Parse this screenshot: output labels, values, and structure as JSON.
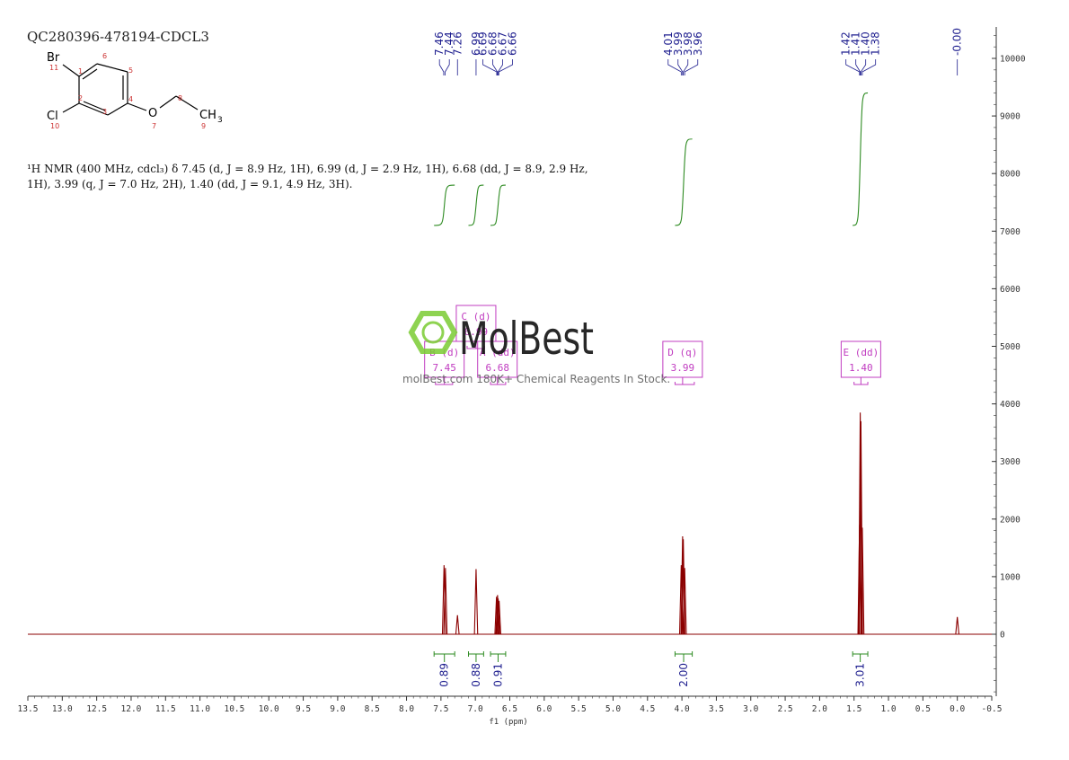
{
  "sample_id": "QC280396-478194-CDCL3",
  "structure": {
    "atoms": {
      "br": "Br",
      "br_num": "11",
      "cl": "Cl",
      "cl_num": "10",
      "o": "O",
      "o_num": "7",
      "ch3": "CH",
      "ch3_sub": "3",
      "ch3_num": "9",
      "c1": "1",
      "c2": "2",
      "c3": "3",
      "c4": "4",
      "c5": "5",
      "c6": "6",
      "c8": "8"
    }
  },
  "description": {
    "line1": "¹H NMR (400 MHz, cdcl₃) δ 7.45 (d, J = 8.9 Hz, 1H), 6.99 (d, J = 2.9 Hz, 1H), 6.68 (dd, J = 8.9, 2.9 Hz,",
    "line2": "1H), 3.99 (q, J = 7.0 Hz, 2H), 1.40 (dd, J = 9.1, 4.9 Hz, 3H)."
  },
  "watermark": {
    "brand": "MolBest",
    "tagline": "molBest.com 180K+ Chemical Reagents In Stock."
  },
  "chart_data": {
    "type": "line",
    "xlabel": "f1 (ppm)",
    "xlim": [
      13.5,
      -0.5
    ],
    "ylim": [
      -1000,
      10500
    ],
    "x_ticks": [
      "13.5",
      "13.0",
      "12.5",
      "12.0",
      "11.5",
      "11.0",
      "10.5",
      "10.0",
      "9.5",
      "9.0",
      "8.5",
      "8.0",
      "7.5",
      "7.0",
      "6.5",
      "6.0",
      "5.5",
      "5.0",
      "4.5",
      "4.0",
      "3.5",
      "3.0",
      "2.5",
      "2.0",
      "1.5",
      "1.0",
      "0.5",
      "0.0",
      "-0.5"
    ],
    "y_ticks": [
      "0",
      "1000",
      "2000",
      "3000",
      "4000",
      "5000",
      "6000",
      "7000",
      "8000",
      "9000",
      "10000"
    ],
    "spectrum_color": "#8b0000",
    "peaks": [
      {
        "ppm": 7.455,
        "height": 1200
      },
      {
        "ppm": 7.435,
        "height": 1150
      },
      {
        "ppm": 7.26,
        "height": 330
      },
      {
        "ppm": 6.99,
        "height": 1130
      },
      {
        "ppm": 6.693,
        "height": 650
      },
      {
        "ppm": 6.678,
        "height": 680
      },
      {
        "ppm": 6.669,
        "height": 620
      },
      {
        "ppm": 6.655,
        "height": 580
      },
      {
        "ppm": 4.01,
        "height": 1200
      },
      {
        "ppm": 3.99,
        "height": 1700
      },
      {
        "ppm": 3.98,
        "height": 1650
      },
      {
        "ppm": 3.96,
        "height": 1150
      },
      {
        "ppm": 1.42,
        "height": 1900
      },
      {
        "ppm": 1.41,
        "height": 3850
      },
      {
        "ppm": 1.4,
        "height": 3700
      },
      {
        "ppm": 1.38,
        "height": 1850
      },
      {
        "ppm": 0.0,
        "height": 300
      }
    ],
    "peak_labels": [
      {
        "text": "7.46",
        "ppm": 7.46
      },
      {
        "text": "7.44",
        "ppm": 7.44
      },
      {
        "text": "7.26",
        "ppm": 7.26
      },
      {
        "text": "6.99",
        "ppm": 6.99
      },
      {
        "text": "6.69",
        "ppm": 6.69
      },
      {
        "text": "6.68",
        "ppm": 6.68
      },
      {
        "text": "6.67",
        "ppm": 6.67
      },
      {
        "text": "6.66",
        "ppm": 6.66
      },
      {
        "text": "4.01",
        "ppm": 4.01
      },
      {
        "text": "3.99",
        "ppm": 3.99
      },
      {
        "text": "3.98",
        "ppm": 3.98
      },
      {
        "text": "3.96",
        "ppm": 3.96
      },
      {
        "text": "1.42",
        "ppm": 1.42
      },
      {
        "text": "1.41",
        "ppm": 1.41
      },
      {
        "text": "1.40",
        "ppm": 1.4
      },
      {
        "text": "1.38",
        "ppm": 1.38
      },
      {
        "text": "-0.00",
        "ppm": 0.0
      }
    ],
    "integrals": [
      {
        "label": "0.89",
        "from": 7.6,
        "to": 7.3,
        "baseline": 7100,
        "top": 7800
      },
      {
        "label": "0.88",
        "from": 7.1,
        "to": 6.88,
        "baseline": 7100,
        "top": 7800
      },
      {
        "label": "0.91",
        "from": 6.78,
        "to": 6.56,
        "baseline": 7100,
        "top": 7800
      },
      {
        "label": "2.00",
        "from": 4.1,
        "to": 3.85,
        "baseline": 7100,
        "top": 8600
      },
      {
        "label": "3.01",
        "from": 1.52,
        "to": 1.3,
        "baseline": 7100,
        "top": 9400
      }
    ],
    "multiplets": [
      {
        "letter": "B (d)",
        "shift": "7.45",
        "ppm": 7.45,
        "from": 7.58,
        "to": 7.33
      },
      {
        "letter": "C (d)",
        "shift": "6.99",
        "ppm": 6.99,
        "from": 7.12,
        "to": 6.87
      },
      {
        "letter": "A (dd)",
        "shift": "6.68",
        "ppm": 6.68,
        "from": 6.78,
        "to": 6.56
      },
      {
        "letter": "D (q)",
        "shift": "3.99",
        "ppm": 3.99,
        "from": 4.1,
        "to": 3.82
      },
      {
        "letter": "E (dd)",
        "shift": "1.40",
        "ppm": 1.4,
        "from": 1.5,
        "to": 1.3
      }
    ],
    "colors": {
      "peak_label": "#1f1f8f",
      "integral": "#2e8b22",
      "multiplet": "#c03cc0",
      "axis": "#333333",
      "logo": "#7acb32"
    }
  }
}
